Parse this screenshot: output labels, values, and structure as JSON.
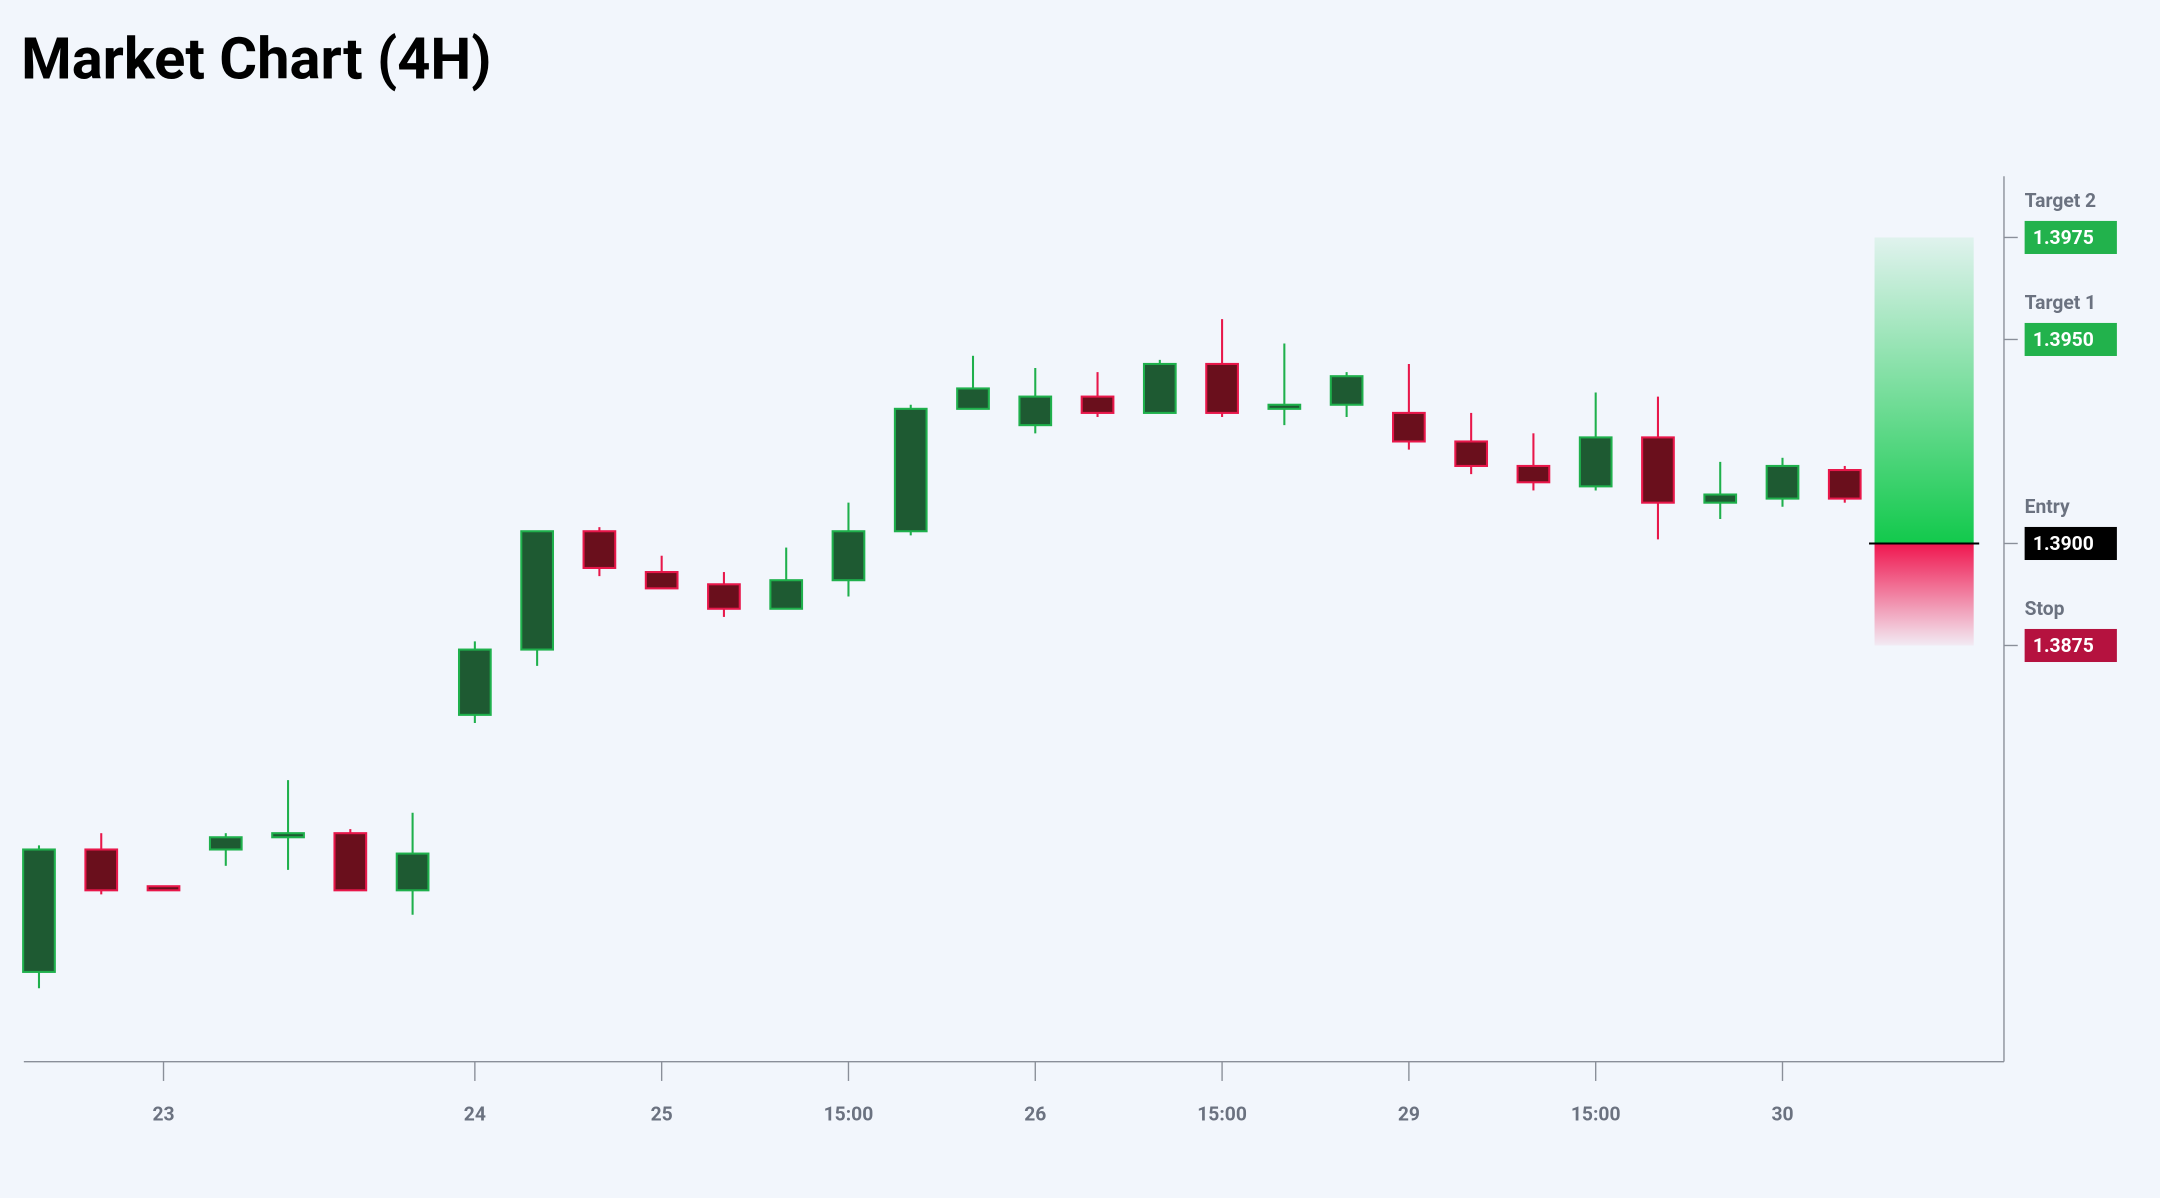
{
  "chart_data": {
    "type": "candlestick",
    "title": "Market Chart (4H)",
    "categories": [
      null,
      null,
      "23",
      null,
      null,
      null,
      null,
      "24",
      null,
      null,
      "25",
      null,
      null,
      "15:00",
      null,
      null,
      "26",
      null,
      null,
      "15:00",
      null,
      null,
      "29",
      null,
      null,
      "15:00",
      null,
      null,
      "30",
      null
    ],
    "open": [
      1.3795,
      1.3825,
      1.3816,
      1.3825,
      1.3828,
      1.3829,
      1.3815,
      1.3858,
      1.3874,
      1.3903,
      1.3893,
      1.389,
      1.3884,
      1.3891,
      1.3903,
      1.3933,
      1.3929,
      1.3936,
      1.3932,
      1.3944,
      1.3933,
      1.3934,
      1.3932,
      1.3925,
      1.3919,
      1.3914,
      1.3926,
      1.391,
      1.3911,
      1.3918
    ],
    "high": [
      1.3826,
      1.3829,
      1.3816,
      1.3829,
      1.3842,
      1.383,
      1.3834,
      1.3876,
      1.3903,
      1.3904,
      1.3897,
      1.3893,
      1.3899,
      1.391,
      1.3934,
      1.3946,
      1.3943,
      1.3942,
      1.3945,
      1.3955,
      1.3949,
      1.3942,
      1.3944,
      1.3932,
      1.3927,
      1.3937,
      1.3936,
      1.392,
      1.3921,
      1.3919
    ],
    "low": [
      1.3791,
      1.3814,
      1.3815,
      1.3821,
      1.382,
      1.3815,
      1.3809,
      1.3856,
      1.387,
      1.3892,
      1.3889,
      1.3882,
      1.3884,
      1.3887,
      1.3902,
      1.3933,
      1.3927,
      1.3931,
      1.3932,
      1.3931,
      1.3929,
      1.3931,
      1.3923,
      1.3917,
      1.3913,
      1.3913,
      1.3901,
      1.3906,
      1.3909,
      1.391
    ],
    "close": [
      1.3825,
      1.3815,
      1.3815,
      1.3828,
      1.3829,
      1.3815,
      1.3824,
      1.3874,
      1.3903,
      1.3894,
      1.3889,
      1.3884,
      1.3891,
      1.3903,
      1.3933,
      1.3938,
      1.3936,
      1.3932,
      1.3944,
      1.3932,
      1.3934,
      1.3941,
      1.3925,
      1.3919,
      1.3915,
      1.3926,
      1.391,
      1.3912,
      1.3919,
      1.3911
    ],
    "up_fill": "#1e5a32",
    "up_stroke": "#1fb04c",
    "down_fill": "#6a0f1c",
    "down_stroke": "#e8174a",
    "ylim": [
      1.3773,
      1.399
    ],
    "levels": [
      {
        "name": "Target 2",
        "value": 1.3975,
        "label": "1.3975",
        "color": "#22b24c"
      },
      {
        "name": "Target 1",
        "value": 1.395,
        "label": "1.3950",
        "color": "#22b24c"
      },
      {
        "name": "Entry",
        "value": 1.39,
        "label": "1.3900",
        "color": "#000000"
      },
      {
        "name": "Stop",
        "value": 1.3875,
        "label": "1.3875",
        "color": "#b5123f"
      }
    ]
  }
}
